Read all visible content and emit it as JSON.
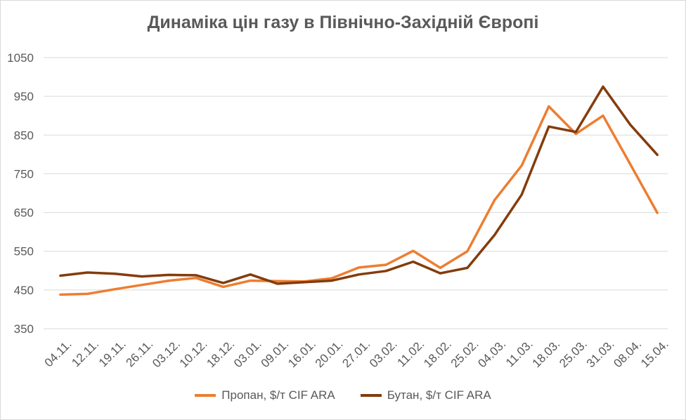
{
  "chart_data": {
    "type": "line",
    "title": "Динаміка цін газу в Північно-Західній Європі",
    "categories": [
      "04.11.",
      "12.11.",
      "19.11.",
      "26.11.",
      "03.12.",
      "10.12.",
      "18.12.",
      "03.01.",
      "09.01.",
      "16.01.",
      "20.01.",
      "27.01.",
      "03.02.",
      "11.02.",
      "18.02.",
      "25.02.",
      "04.03.",
      "11.03.",
      "18.03.",
      "25.03.",
      "31.03.",
      "08.04.",
      "15.04."
    ],
    "series": [
      {
        "name": "Пропан, $/т CIF ARA",
        "color": "#ed7d31",
        "values": [
          438,
          440,
          452,
          463,
          474,
          481,
          458,
          474,
          473,
          472,
          480,
          508,
          515,
          551,
          507,
          550,
          682,
          771,
          924,
          853,
          900,
          775,
          649
        ]
      },
      {
        "name": "Бутан, $/т CIF ARA",
        "color": "#843c0c",
        "values": [
          487,
          495,
          492,
          485,
          489,
          488,
          468,
          490,
          466,
          470,
          474,
          490,
          499,
          523,
          493,
          507,
          592,
          696,
          872,
          858,
          975,
          877,
          799
        ]
      }
    ],
    "yticks": [
      350,
      450,
      550,
      650,
      750,
      850,
      950,
      1050
    ],
    "ylim": [
      350,
      1050
    ],
    "grid": true,
    "legend_position": "bottom"
  }
}
